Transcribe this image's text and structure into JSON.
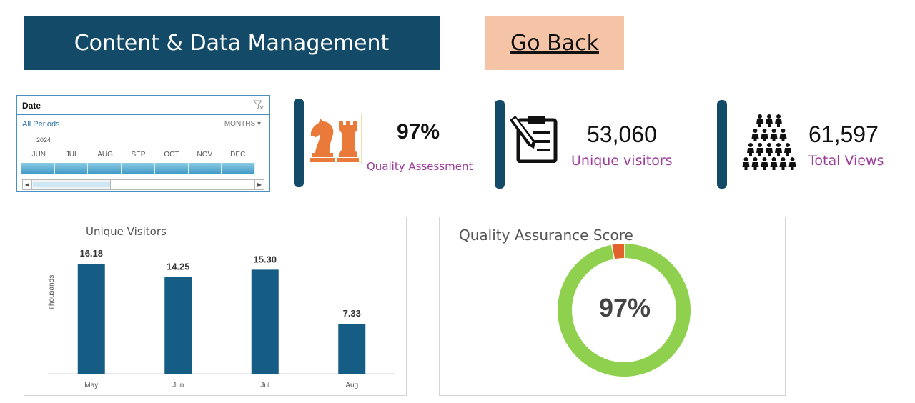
{
  "header": {
    "title": "Content & Data Management",
    "go_back_label": "Go Back"
  },
  "slicer": {
    "title": "Date",
    "all_periods": "All Periods",
    "months_label": "MONTHS",
    "year": "2024",
    "months": [
      "JUN",
      "JUL",
      "AUG",
      "SEP",
      "OCT",
      "NOV",
      "DEC"
    ]
  },
  "kpis": {
    "quality": {
      "value": "97%",
      "label": "Quality Assessment",
      "icon": "chess-pieces-icon"
    },
    "visitors": {
      "value": "53,060",
      "label": "Unique visitors",
      "icon": "clipboard-pencil-icon"
    },
    "views": {
      "value": "61,597",
      "label": "Total Views",
      "icon": "people-crowd-icon"
    }
  },
  "colors": {
    "navy": "#134a68",
    "peach": "#f5c4a7",
    "bar": "#155d84",
    "donut_green": "#8fd14f",
    "donut_orange": "#e2622c",
    "label_purple": "#9b3b9a",
    "chess_orange": "#e97a3a"
  },
  "chart_data": [
    {
      "type": "bar",
      "title": "Unique Visitors",
      "ylabel": "Thousands",
      "xlabel": "",
      "categories": [
        "May",
        "Jun",
        "Jul",
        "Aug"
      ],
      "values": [
        16.18,
        14.25,
        15.3,
        7.33
      ],
      "data_labels": [
        "16.18",
        "14.25",
        "15.30",
        "7.33"
      ],
      "ylim": [
        0,
        16.18
      ],
      "grid": false
    },
    {
      "type": "pie",
      "title": "Quality Assurance Score",
      "center_label": "97%",
      "values": [
        97,
        3
      ],
      "colors": [
        "#8fd14f",
        "#e2622c"
      ]
    }
  ]
}
